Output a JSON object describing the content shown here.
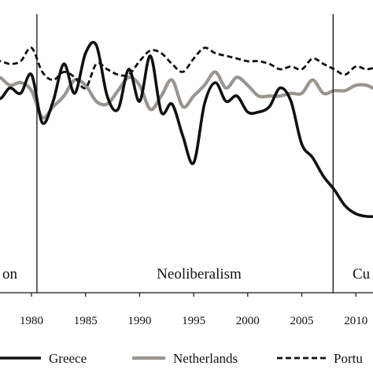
{
  "chart_data": {
    "type": "line",
    "title": "",
    "xlabel": "",
    "ylabel": "",
    "xlim": [
      1976,
      2012
    ],
    "ylim": [
      0,
      100
    ],
    "x_ticks": [
      1980,
      1985,
      1990,
      1995,
      2000,
      2005,
      2010
    ],
    "x_tick_labels": [
      "1980",
      "1985",
      "1990",
      "1995",
      "2000",
      "2005",
      "2010"
    ],
    "grid": false,
    "legend_position": "bottom",
    "vertical_markers": [
      1980.5,
      2007.9
    ],
    "period_labels": [
      {
        "text": "on",
        "x": 1978
      },
      {
        "text": "Neoliberalism",
        "x": 1995.5
      },
      {
        "text": "Cu",
        "x": 2010.5
      }
    ],
    "series": [
      {
        "name": "Greece",
        "color": "#111111",
        "style": "solid",
        "x": [
          1976,
          1977,
          1978,
          1979,
          1980,
          1981,
          1982,
          1983,
          1984,
          1985,
          1986,
          1987,
          1988,
          1989,
          1990,
          1991,
          1992,
          1993,
          1994,
          1995,
          1996,
          1997,
          1998,
          1999,
          2000,
          2001,
          2002,
          2003,
          2004,
          2005,
          2006,
          2007,
          2008,
          2009,
          2010,
          2011,
          2012
        ],
        "values": [
          76,
          69,
          73,
          71,
          78,
          60,
          68,
          82,
          71,
          86,
          89,
          70,
          65,
          80,
          68,
          85,
          64,
          67,
          55,
          45,
          67,
          75,
          68,
          70,
          64,
          64,
          66,
          73,
          68,
          52,
          47,
          40,
          35,
          29,
          26,
          25,
          25
        ]
      },
      {
        "name": "Netherlands",
        "color": "#9a958f",
        "style": "solid",
        "x": [
          1976,
          1977,
          1978,
          1979,
          1980,
          1981,
          1982,
          1983,
          1984,
          1985,
          1986,
          1987,
          1988,
          1989,
          1990,
          1991,
          1992,
          1993,
          1994,
          1995,
          1996,
          1997,
          1998,
          1999,
          2000,
          2001,
          2002,
          2003,
          2004,
          2005,
          2006,
          2007,
          2008,
          2009,
          2010,
          2011,
          2012
        ],
        "values": [
          75,
          77,
          74,
          75,
          72,
          62,
          66,
          70,
          76,
          74,
          68,
          67,
          72,
          77,
          74,
          65,
          70,
          76,
          66,
          70,
          74,
          79,
          73,
          77,
          74,
          70,
          70,
          70,
          71,
          71,
          76,
          71,
          72,
          72,
          74,
          74,
          72
        ]
      },
      {
        "name": "Portu",
        "color": "#111111",
        "style": "dashed",
        "x": [
          1976,
          1977,
          1978,
          1979,
          1980,
          1981,
          1982,
          1983,
          1984,
          1985,
          1986,
          1987,
          1988,
          1989,
          1990,
          1991,
          1992,
          1993,
          1994,
          1995,
          1996,
          1997,
          1998,
          1999,
          2000,
          2001,
          2002,
          2003,
          2004,
          2005,
          2006,
          2007,
          2008,
          2009,
          2010,
          2011,
          2012
        ],
        "values": [
          81,
          83,
          82,
          83,
          88,
          79,
          76,
          79,
          77,
          73,
          82,
          80,
          78,
          78,
          83,
          87,
          86,
          82,
          79,
          84,
          88,
          86,
          85,
          84,
          83,
          83,
          82,
          80,
          81,
          80,
          84,
          82,
          80,
          78,
          81,
          80,
          81
        ]
      }
    ]
  }
}
